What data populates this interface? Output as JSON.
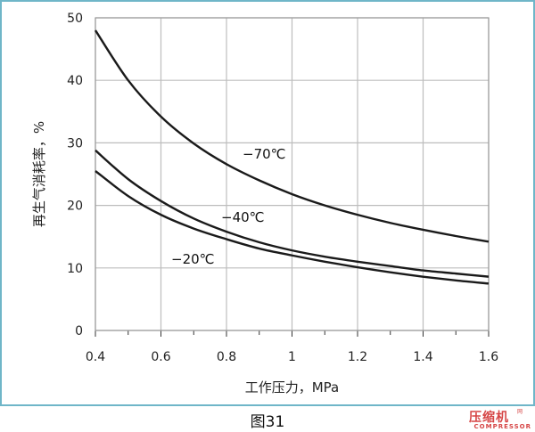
{
  "chart_data": {
    "type": "line",
    "xlabel": "工作压力，MPa",
    "ylabel": "再生气消耗率，%",
    "xlim": [
      0.4,
      1.6
    ],
    "ylim": [
      0,
      50
    ],
    "xticks": [
      0.4,
      0.6,
      0.8,
      1.0,
      1.2,
      1.4,
      1.6
    ],
    "xtick_labels": [
      "0.4",
      "0.6",
      "0.8",
      "1",
      "1.2",
      "1.4",
      "1.6"
    ],
    "yticks": [
      0,
      10,
      20,
      30,
      40,
      50
    ],
    "ytick_labels": [
      "0",
      "10",
      "20",
      "30",
      "40",
      "50"
    ],
    "grid": true,
    "series": [
      {
        "name": "−70℃",
        "x": [
          0.4,
          0.5,
          0.6,
          0.7,
          0.8,
          0.9,
          1.0,
          1.1,
          1.2,
          1.3,
          1.4,
          1.5,
          1.6
        ],
        "values": [
          48.0,
          40.0,
          34.2,
          29.9,
          26.6,
          24.0,
          21.8,
          20.0,
          18.5,
          17.2,
          16.1,
          15.1,
          14.2
        ]
      },
      {
        "name": "−40℃",
        "x": [
          0.4,
          0.5,
          0.6,
          0.7,
          0.8,
          0.9,
          1.0,
          1.1,
          1.2,
          1.3,
          1.4,
          1.5,
          1.6
        ],
        "values": [
          28.8,
          24.2,
          20.7,
          17.9,
          15.8,
          14.1,
          12.8,
          11.8,
          11.0,
          10.3,
          9.6,
          9.1,
          8.6
        ]
      },
      {
        "name": "−20℃",
        "x": [
          0.4,
          0.5,
          0.6,
          0.7,
          0.8,
          0.9,
          1.0,
          1.1,
          1.2,
          1.3,
          1.4,
          1.5,
          1.6
        ],
        "values": [
          25.5,
          21.5,
          18.5,
          16.3,
          14.6,
          13.1,
          12.0,
          11.0,
          10.1,
          9.3,
          8.6,
          8.0,
          7.5
        ]
      }
    ]
  },
  "caption": "图31",
  "watermark": {
    "main": "压缩机",
    "side": "网",
    "sub": "COMPRESSOR"
  },
  "colors": {
    "frame": "#6fb6c8",
    "grid": "#bdbdbd",
    "line": "#1a1a1a",
    "watermark": "#d64646"
  }
}
